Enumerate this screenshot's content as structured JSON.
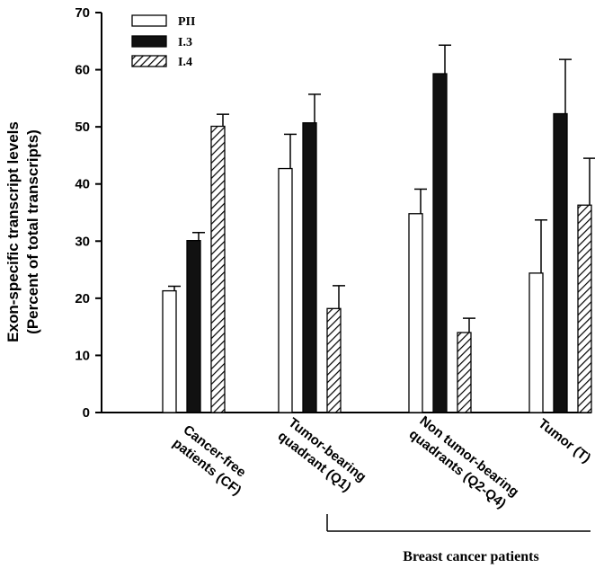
{
  "chart_data": {
    "type": "bar",
    "ylabel_line1": "Exon-specific transcript levels",
    "ylabel_line2": "(Percent of total transcripts)",
    "ylim": [
      0,
      70
    ],
    "yticks": [
      "0",
      "10",
      "20",
      "30",
      "40",
      "50",
      "60",
      "70"
    ],
    "categories": [
      [
        "Cancer-free",
        "patients (CF)"
      ],
      [
        "Tumor-bearing",
        "quadrant (Q1)"
      ],
      [
        "Non tumor-bearing",
        "quadrants (Q2-Q4)"
      ],
      [
        "Tumor (T)"
      ]
    ],
    "series": [
      {
        "name": "PII",
        "values": [
          21.3,
          42.7,
          34.8,
          24.4
        ],
        "errors": [
          0.8,
          6.0,
          4.3,
          9.3
        ],
        "color": "#ffffff",
        "pattern": "open"
      },
      {
        "name": "I.3",
        "values": [
          30.1,
          50.7,
          59.3,
          52.3
        ],
        "errors": [
          1.4,
          5.0,
          5.0,
          9.5
        ],
        "color": "#111111",
        "pattern": "solid"
      },
      {
        "name": "I.4",
        "values": [
          50.1,
          18.2,
          14.0,
          36.3
        ],
        "errors": [
          2.1,
          4.0,
          2.5,
          8.2
        ],
        "color": "#ffffff",
        "pattern": "hatched"
      }
    ],
    "legend_position": "top-left",
    "grid": false,
    "group_label": "Breast cancer patients"
  }
}
